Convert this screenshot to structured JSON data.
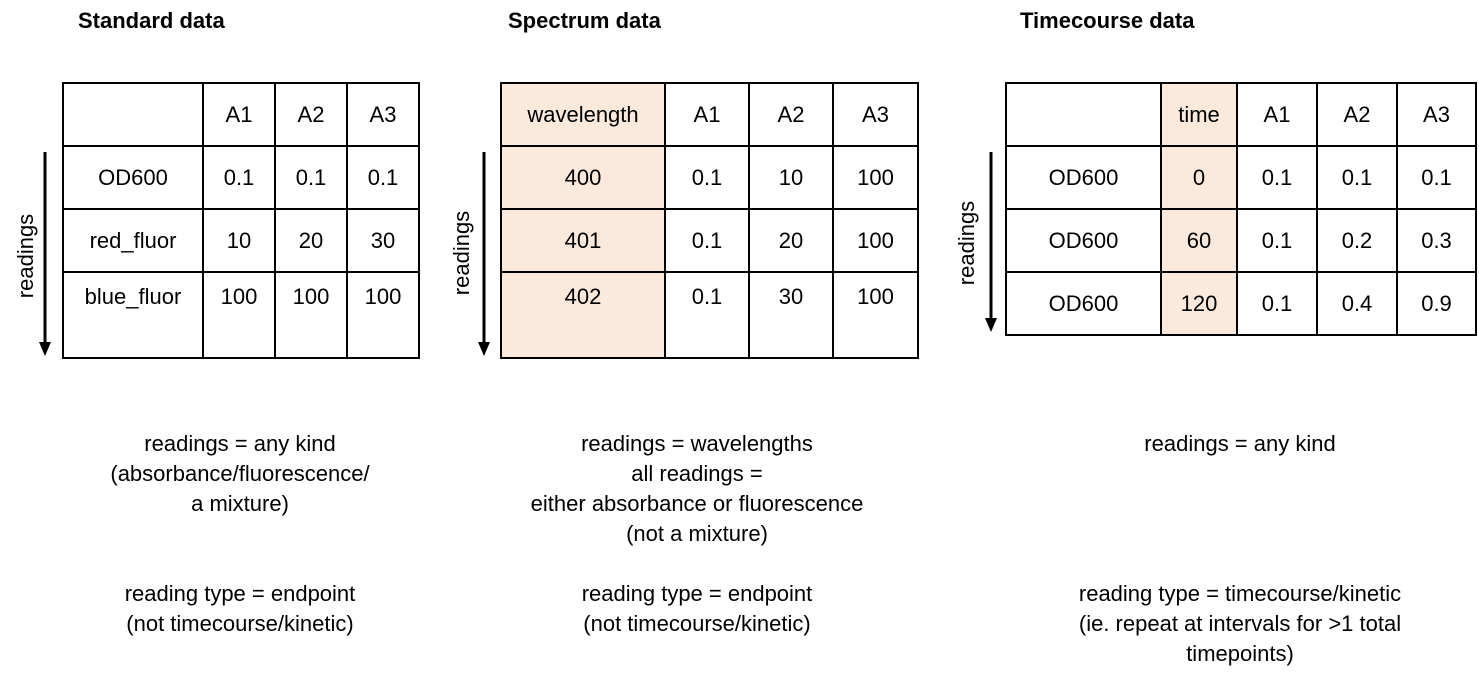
{
  "panels": [
    {
      "title": "Standard data",
      "side_label": "readings",
      "header": [
        "",
        "A1",
        "A2",
        "A3"
      ],
      "rows": [
        [
          "OD600",
          "0.1",
          "0.1",
          "0.1"
        ],
        [
          "red_fluor",
          "10",
          "20",
          "30"
        ],
        [
          "blue_fluor",
          "100",
          "100",
          "100"
        ]
      ],
      "notes": [
        [
          "readings = any kind",
          "(absorbance/fluorescence/",
          "a mixture)"
        ],
        [
          "reading type = endpoint",
          "(not timecourse/kinetic)"
        ]
      ]
    },
    {
      "title": "Spectrum data",
      "side_label": "readings",
      "header": [
        "wavelength",
        "A1",
        "A2",
        "A3"
      ],
      "rows": [
        [
          "400",
          "0.1",
          "10",
          "100"
        ],
        [
          "401",
          "0.1",
          "20",
          "100"
        ],
        [
          "402",
          "0.1",
          "30",
          "100"
        ]
      ],
      "notes": [
        [
          "readings = wavelengths",
          "all readings =",
          "either absorbance or fluorescence",
          "(not a mixture)"
        ],
        [
          "reading type = endpoint",
          "(not timecourse/kinetic)"
        ]
      ]
    },
    {
      "title": "Timecourse data",
      "side_label": "readings",
      "header": [
        "",
        "time",
        "A1",
        "A2",
        "A3"
      ],
      "rows": [
        [
          "OD600",
          "0",
          "0.1",
          "0.1",
          "0.1"
        ],
        [
          "OD600",
          "60",
          "0.1",
          "0.2",
          "0.3"
        ],
        [
          "OD600",
          "120",
          "0.1",
          "0.4",
          "0.9"
        ]
      ],
      "notes": [
        [
          "readings = any kind"
        ],
        [
          "reading type = timecourse/kinetic",
          "(ie. repeat at intervals for >1 total",
          "timepoints)"
        ]
      ]
    }
  ],
  "highlight_color": "#fbe9dc"
}
